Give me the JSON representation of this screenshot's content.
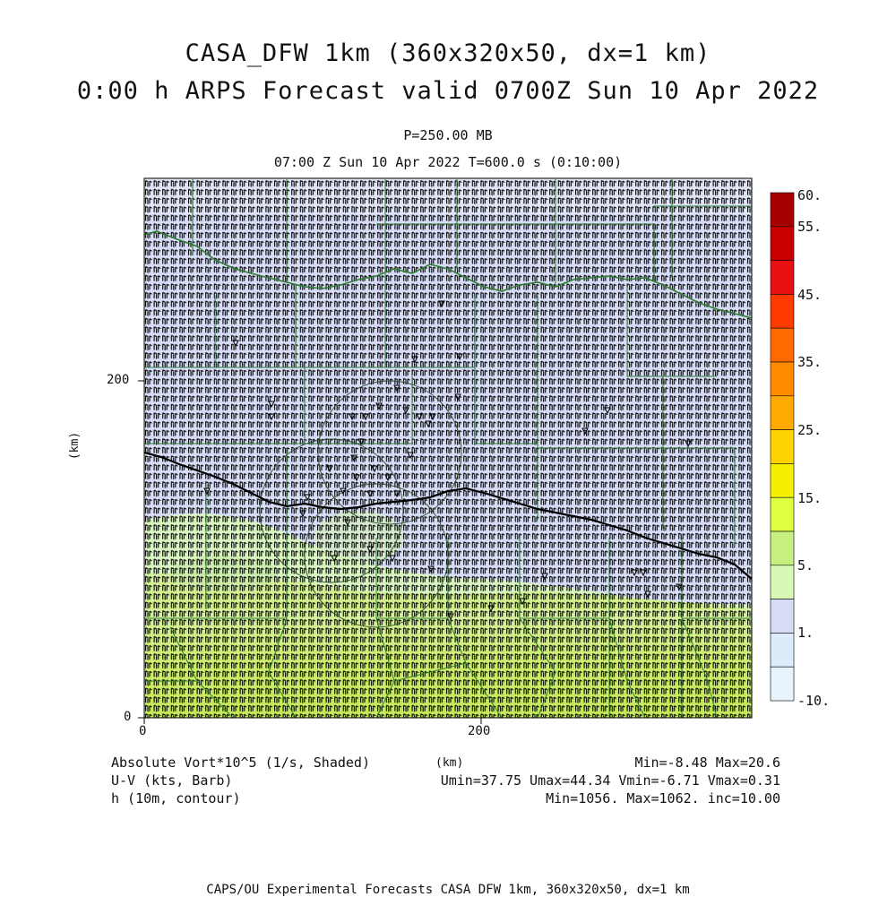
{
  "header": {
    "title_line1": "CASA_DFW 1km (360x320x50, dx=1 km)",
    "title_line2": "0:00 h ARPS Forecast valid 0700Z Sun 10 Apr 2022",
    "pressure_level": "P=250.00 MB",
    "time_info": "07:00 Z Sun 10 Apr 2022   T=600.0 s (0:10:00)"
  },
  "axes": {
    "y_label": "(km)",
    "x_label": "(km)",
    "x_ticks": [
      "0",
      "200"
    ],
    "y_ticks": [
      "0",
      "200"
    ]
  },
  "colorbar": {
    "labels": [
      "60.",
      "55.",
      "45.",
      "35.",
      "25.",
      "15.",
      "5.",
      "1.",
      "-10."
    ],
    "colors": [
      "#a80000",
      "#c80000",
      "#e81010",
      "#ff3a00",
      "#ff6a00",
      "#ff8c00",
      "#ffaa00",
      "#ffd400",
      "#f4f000",
      "#e0ff40",
      "#c8f080",
      "#d8f8b8",
      "#d6dcf6",
      "#dcecfa",
      "#e8f4fc"
    ]
  },
  "legend": {
    "field1": "Absolute Vort*10^5 (1/s, Shaded)",
    "field2": "U-V (kts, Barb)",
    "field3": "h (10m, contour)",
    "minmax1": "Min=-8.48 Max=20.6",
    "minmax2": "Umin=37.75 Umax=44.34 Vmin=-6.71 Vmax=0.31",
    "minmax3": "Min=1056. Max=1062. inc=10.00"
  },
  "footer": "CAPS/OU Experimental Forecasts  CASA DFW 1km, 360x320x50, dx=1 km",
  "map_colors": {
    "background": "#d6dcf6",
    "green_field": "#c9ec78",
    "county_lines": "#2e7d32",
    "barbs": "#000000"
  }
}
